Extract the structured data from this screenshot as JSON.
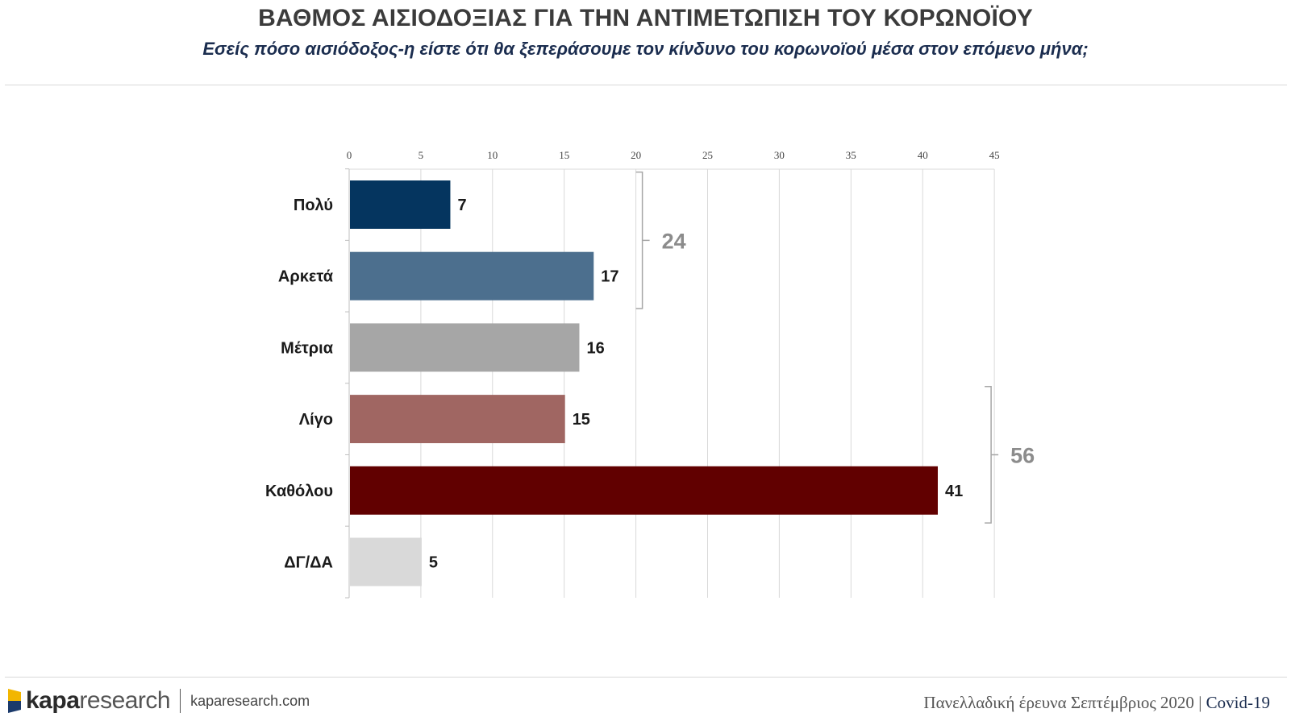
{
  "header": {
    "title": "ΒΑΘΜΟΣ ΑΙΣΙΟΔΟΞΙΑΣ ΓΙΑ ΤΗΝ ΑΝΤΙΜΕΤΩΠΙΣΗ ΤΟΥ ΚΟΡΩΝΟΪΟΥ",
    "subtitle": "Εσείς πόσο αισιόδοξος-η είστε ότι θα ξεπεράσουμε τον κίνδυνο του κορωνοϊού μέσα στον επόμενο μήνα;"
  },
  "chart_data": {
    "type": "bar",
    "orientation": "horizontal",
    "categories": [
      "Πολύ",
      "Αρκετά",
      "Μέτρια",
      "Λίγο",
      "Καθόλου",
      "ΔΓ/ΔΑ"
    ],
    "values": [
      7,
      17,
      16,
      15,
      41,
      5
    ],
    "bar_labels": [
      "7",
      "17",
      "16",
      "15",
      "41",
      "5"
    ],
    "colors": [
      "#05355f",
      "#4c6f8e",
      "#a6a6a6",
      "#a06662",
      "#610000",
      "#d9d9d9"
    ],
    "xlim": [
      0,
      45
    ],
    "xticks": [
      0,
      5,
      10,
      15,
      20,
      25,
      30,
      35,
      40,
      45
    ],
    "tick_labels": [
      "0",
      "5",
      "10",
      "15",
      "20",
      "25",
      "30",
      "35",
      "40",
      "45"
    ],
    "grid": true,
    "axis_position": "top",
    "groups": [
      {
        "label": "24",
        "categories": [
          "Πολύ",
          "Αρκετά"
        ],
        "side": "right-of-axis-20"
      },
      {
        "label": "56",
        "categories": [
          "Λίγο",
          "Καθόλου"
        ],
        "side": "right-of-axis-45"
      }
    ]
  },
  "footer": {
    "logo_bold": "kapa",
    "logo_light": "research",
    "website": "kaparesearch.com",
    "survey_text": "Πανελλαδική έρευνα Σεπτέμβριος 2020",
    "separator": "|",
    "tag": "Covid-19"
  },
  "logo_colors": [
    "#f2b600",
    "#1b3a6b"
  ]
}
